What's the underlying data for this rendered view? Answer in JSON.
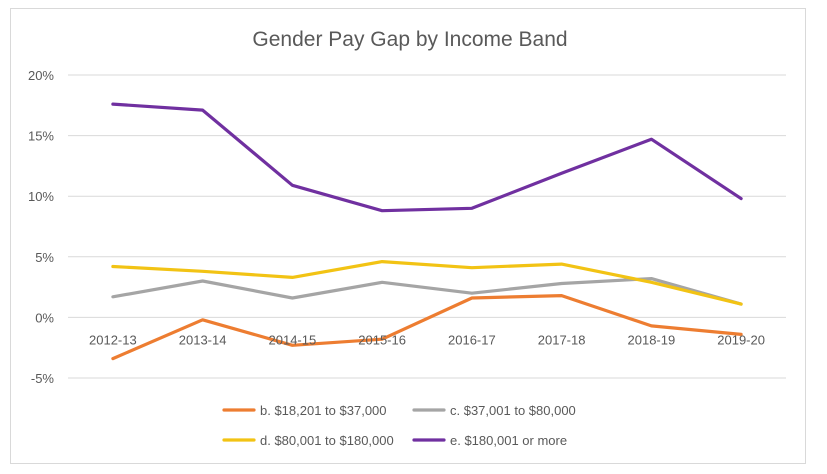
{
  "chart_data": {
    "type": "line",
    "title": "Gender Pay Gap by Income Band",
    "xlabel": "",
    "ylabel": "",
    "categories": [
      "2012-13",
      "2013-14",
      "2014-15",
      "2015-16",
      "2016-17",
      "2017-18",
      "2018-19",
      "2019-20"
    ],
    "ylim": [
      -5,
      20
    ],
    "yticks": [
      -5,
      0,
      5,
      10,
      15,
      20
    ],
    "ytick_labels": [
      "-5%",
      "0%",
      "5%",
      "10%",
      "15%",
      "20%"
    ],
    "grid": true,
    "legend_position": "bottom",
    "series": [
      {
        "name": "b. $18,201 to $37,000",
        "color": "#ed7d31",
        "values": [
          -3.4,
          -0.2,
          -2.3,
          -1.8,
          1.6,
          1.8,
          -0.7,
          -1.4
        ]
      },
      {
        "name": "c. $37,001 to $80,000",
        "color": "#a5a5a5",
        "values": [
          1.7,
          3.0,
          1.6,
          2.9,
          2.0,
          2.8,
          3.2,
          1.1
        ]
      },
      {
        "name": "d. $80,001 to $180,000",
        "color": "#f2c314",
        "values": [
          4.2,
          3.8,
          3.3,
          4.6,
          4.1,
          4.4,
          2.9,
          1.1
        ]
      },
      {
        "name": "e. $180,001 or more",
        "color": "#7030a0",
        "values": [
          17.6,
          17.1,
          10.9,
          8.8,
          9.0,
          11.9,
          14.7,
          9.8
        ]
      }
    ]
  }
}
